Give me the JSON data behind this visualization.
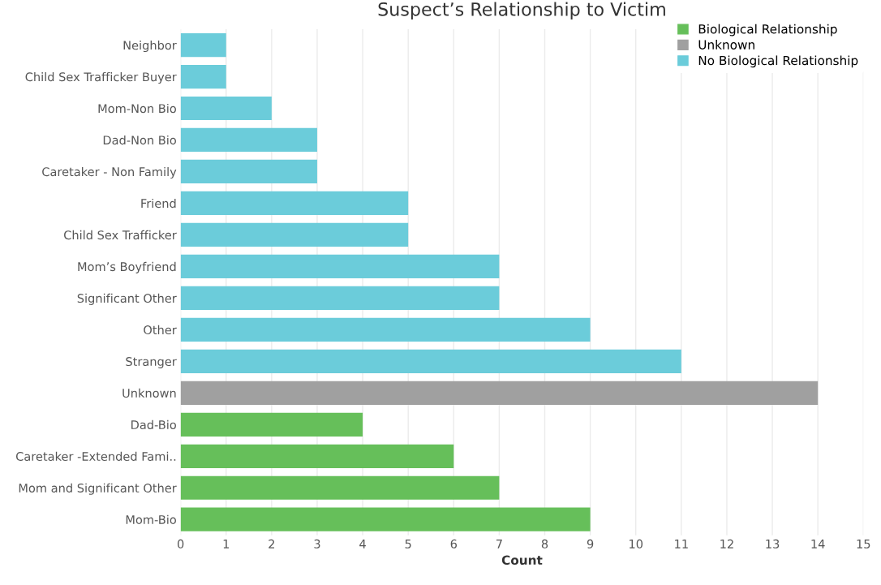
{
  "chart_data": {
    "type": "bar",
    "orientation": "horizontal",
    "title": "Suspect’s Relationship to Victim",
    "xlabel": "Count",
    "categories": [
      "Neighbor",
      "Child Sex Trafficker Buyer",
      "Mom-Non Bio",
      "Dad-Non Bio",
      "Caretaker - Non Family",
      "Friend",
      "Child Sex Trafficker",
      "Mom’s Boyfriend",
      "Significant Other",
      "Other",
      "Stranger",
      "Unknown",
      "Dad-Bio",
      "Caretaker -Extended Fami..",
      "Mom and Significant Other",
      "Mom-Bio"
    ],
    "series": [
      {
        "name": "Biological Relationship",
        "color": "#66bf5a",
        "values": [
          null,
          null,
          null,
          null,
          null,
          null,
          null,
          null,
          null,
          null,
          null,
          null,
          4,
          6,
          7,
          9
        ]
      },
      {
        "name": "Unknown",
        "color": "#a0a0a0",
        "values": [
          null,
          null,
          null,
          null,
          null,
          null,
          null,
          null,
          null,
          null,
          null,
          14,
          null,
          null,
          null,
          null
        ]
      },
      {
        "name": "No Biological Relationship",
        "color": "#6bccda",
        "values": [
          1,
          1,
          2,
          3,
          3,
          5,
          5,
          7,
          7,
          9,
          11,
          null,
          null,
          null,
          null,
          null
        ]
      }
    ],
    "xlim": [
      0,
      15
    ],
    "xticks": [
      0,
      1,
      2,
      3,
      4,
      5,
      6,
      7,
      8,
      9,
      10,
      11,
      12,
      13,
      14,
      15
    ],
    "grid": "x",
    "legend": "top right"
  }
}
